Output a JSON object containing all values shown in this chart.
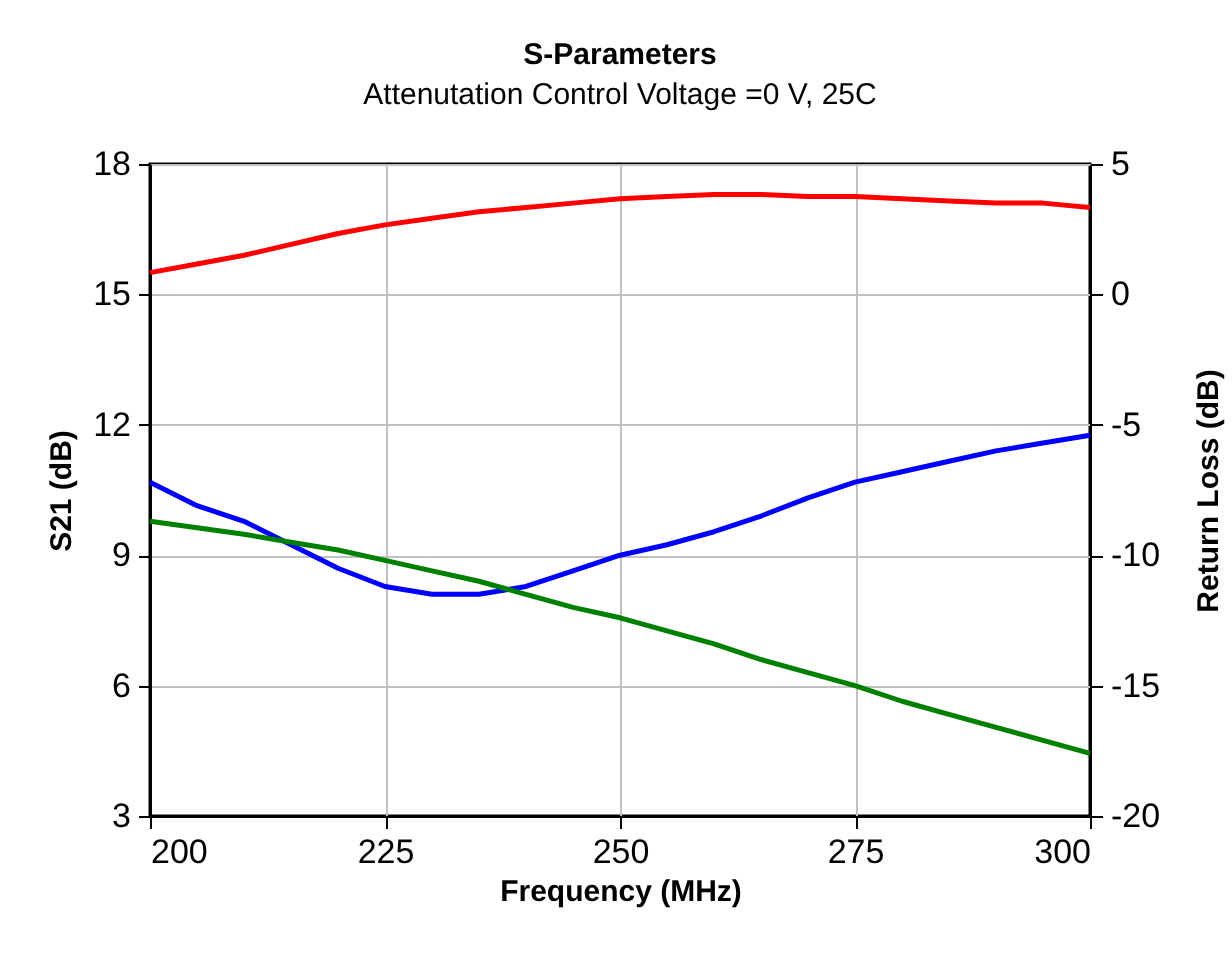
{
  "chart_data": {
    "type": "line",
    "title": "S-Parameters",
    "subtitle": "Attenutation Control Voltage =0 V, 25C",
    "xlabel": "Frequency (MHz)",
    "ylabel": "S21 (dB)",
    "y2label": "Return Loss (dB)",
    "x": [
      200,
      205,
      210,
      215,
      220,
      225,
      230,
      235,
      240,
      245,
      250,
      255,
      260,
      265,
      270,
      275,
      280,
      285,
      290,
      295,
      300
    ],
    "series": [
      {
        "color": "#ff0000",
        "values": [
          15.5,
          15.7,
          15.9,
          16.15,
          16.4,
          16.6,
          16.75,
          16.9,
          17.0,
          17.1,
          17.2,
          17.25,
          17.3,
          17.3,
          17.25,
          17.25,
          17.2,
          17.15,
          17.1,
          17.1,
          17.0
        ]
      },
      {
        "color": "#0000ff",
        "axis": "y2",
        "values": [
          -7.2,
          -8.1,
          -8.7,
          -9.6,
          -10.5,
          -11.2,
          -11.5,
          -11.5,
          -11.2,
          -10.6,
          -10.0,
          -9.6,
          -9.1,
          -8.5,
          -7.8,
          -7.2,
          -6.8,
          -6.4,
          -6.0,
          -5.7,
          -5.4
        ]
      },
      {
        "color": "#008000",
        "axis": "y2",
        "values": [
          -8.7,
          -8.95,
          -9.2,
          -9.5,
          -9.8,
          -10.2,
          -10.6,
          -11.0,
          -11.5,
          -12.0,
          -12.4,
          -12.9,
          -13.4,
          -14.0,
          -14.5,
          -15.0,
          -15.6,
          -16.1,
          -16.6,
          -17.1,
          -17.6
        ]
      }
    ],
    "xlim": [
      200,
      300
    ],
    "xticks": [
      200,
      225,
      250,
      275,
      300
    ],
    "ylim": [
      3,
      18
    ],
    "yticks": [
      3,
      6,
      9,
      12,
      15,
      18
    ],
    "y2lim": [
      -20,
      5
    ],
    "y2ticks": [
      -20,
      -15,
      -10,
      -5,
      0,
      5
    ],
    "grid": true,
    "legend": false,
    "line_style": "solid",
    "marker": "none"
  }
}
